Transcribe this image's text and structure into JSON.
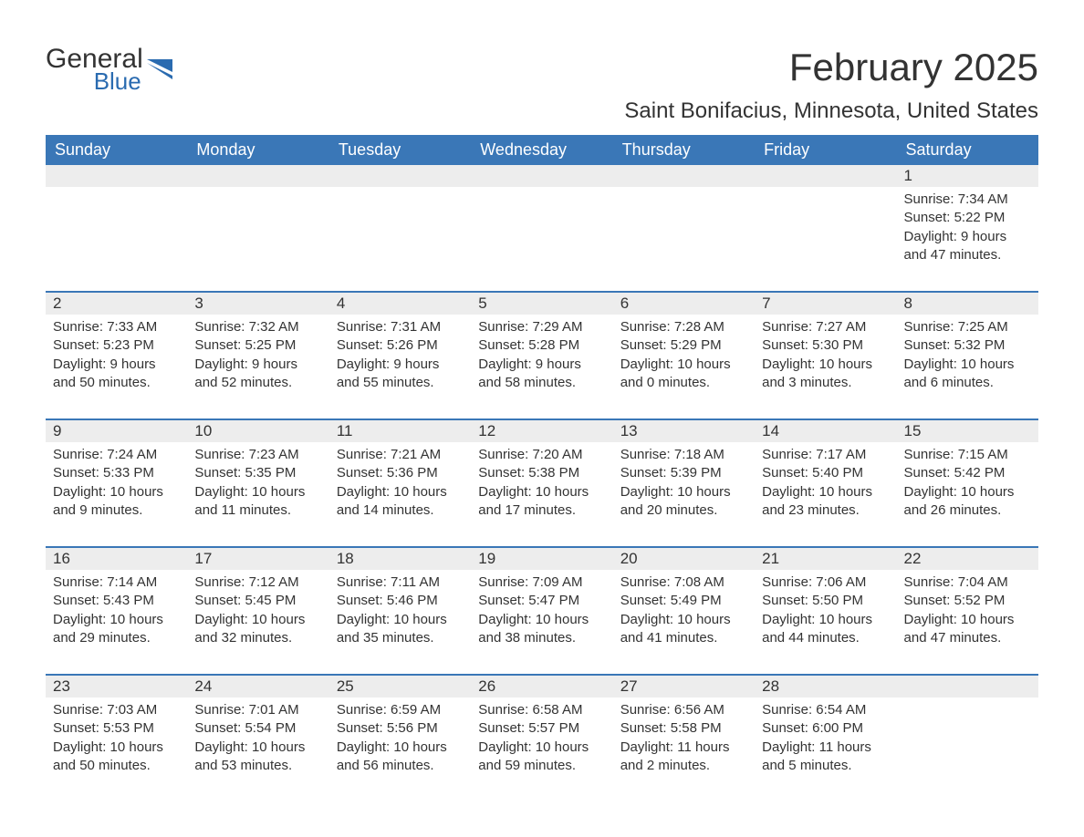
{
  "logo": {
    "general": "General",
    "blue": "Blue",
    "accent_color": "#2a6bb0"
  },
  "title": "February 2025",
  "subtitle": "Saint Bonifacius, Minnesota, United States",
  "colors": {
    "header_bg": "#3a77b7",
    "header_text": "#ffffff",
    "daynum_bg": "#ededed",
    "body_text": "#333333",
    "rule": "#3a77b7",
    "page_bg": "#ffffff"
  },
  "day_headers": [
    "Sunday",
    "Monday",
    "Tuesday",
    "Wednesday",
    "Thursday",
    "Friday",
    "Saturday"
  ],
  "weeks": [
    [
      {
        "empty": true
      },
      {
        "empty": true
      },
      {
        "empty": true
      },
      {
        "empty": true
      },
      {
        "empty": true
      },
      {
        "empty": true
      },
      {
        "num": "1",
        "sunrise": "Sunrise: 7:34 AM",
        "sunset": "Sunset: 5:22 PM",
        "day1": "Daylight: 9 hours",
        "day2": "and 47 minutes."
      }
    ],
    [
      {
        "num": "2",
        "sunrise": "Sunrise: 7:33 AM",
        "sunset": "Sunset: 5:23 PM",
        "day1": "Daylight: 9 hours",
        "day2": "and 50 minutes."
      },
      {
        "num": "3",
        "sunrise": "Sunrise: 7:32 AM",
        "sunset": "Sunset: 5:25 PM",
        "day1": "Daylight: 9 hours",
        "day2": "and 52 minutes."
      },
      {
        "num": "4",
        "sunrise": "Sunrise: 7:31 AM",
        "sunset": "Sunset: 5:26 PM",
        "day1": "Daylight: 9 hours",
        "day2": "and 55 minutes."
      },
      {
        "num": "5",
        "sunrise": "Sunrise: 7:29 AM",
        "sunset": "Sunset: 5:28 PM",
        "day1": "Daylight: 9 hours",
        "day2": "and 58 minutes."
      },
      {
        "num": "6",
        "sunrise": "Sunrise: 7:28 AM",
        "sunset": "Sunset: 5:29 PM",
        "day1": "Daylight: 10 hours",
        "day2": "and 0 minutes."
      },
      {
        "num": "7",
        "sunrise": "Sunrise: 7:27 AM",
        "sunset": "Sunset: 5:30 PM",
        "day1": "Daylight: 10 hours",
        "day2": "and 3 minutes."
      },
      {
        "num": "8",
        "sunrise": "Sunrise: 7:25 AM",
        "sunset": "Sunset: 5:32 PM",
        "day1": "Daylight: 10 hours",
        "day2": "and 6 minutes."
      }
    ],
    [
      {
        "num": "9",
        "sunrise": "Sunrise: 7:24 AM",
        "sunset": "Sunset: 5:33 PM",
        "day1": "Daylight: 10 hours",
        "day2": "and 9 minutes."
      },
      {
        "num": "10",
        "sunrise": "Sunrise: 7:23 AM",
        "sunset": "Sunset: 5:35 PM",
        "day1": "Daylight: 10 hours",
        "day2": "and 11 minutes."
      },
      {
        "num": "11",
        "sunrise": "Sunrise: 7:21 AM",
        "sunset": "Sunset: 5:36 PM",
        "day1": "Daylight: 10 hours",
        "day2": "and 14 minutes."
      },
      {
        "num": "12",
        "sunrise": "Sunrise: 7:20 AM",
        "sunset": "Sunset: 5:38 PM",
        "day1": "Daylight: 10 hours",
        "day2": "and 17 minutes."
      },
      {
        "num": "13",
        "sunrise": "Sunrise: 7:18 AM",
        "sunset": "Sunset: 5:39 PM",
        "day1": "Daylight: 10 hours",
        "day2": "and 20 minutes."
      },
      {
        "num": "14",
        "sunrise": "Sunrise: 7:17 AM",
        "sunset": "Sunset: 5:40 PM",
        "day1": "Daylight: 10 hours",
        "day2": "and 23 minutes."
      },
      {
        "num": "15",
        "sunrise": "Sunrise: 7:15 AM",
        "sunset": "Sunset: 5:42 PM",
        "day1": "Daylight: 10 hours",
        "day2": "and 26 minutes."
      }
    ],
    [
      {
        "num": "16",
        "sunrise": "Sunrise: 7:14 AM",
        "sunset": "Sunset: 5:43 PM",
        "day1": "Daylight: 10 hours",
        "day2": "and 29 minutes."
      },
      {
        "num": "17",
        "sunrise": "Sunrise: 7:12 AM",
        "sunset": "Sunset: 5:45 PM",
        "day1": "Daylight: 10 hours",
        "day2": "and 32 minutes."
      },
      {
        "num": "18",
        "sunrise": "Sunrise: 7:11 AM",
        "sunset": "Sunset: 5:46 PM",
        "day1": "Daylight: 10 hours",
        "day2": "and 35 minutes."
      },
      {
        "num": "19",
        "sunrise": "Sunrise: 7:09 AM",
        "sunset": "Sunset: 5:47 PM",
        "day1": "Daylight: 10 hours",
        "day2": "and 38 minutes."
      },
      {
        "num": "20",
        "sunrise": "Sunrise: 7:08 AM",
        "sunset": "Sunset: 5:49 PM",
        "day1": "Daylight: 10 hours",
        "day2": "and 41 minutes."
      },
      {
        "num": "21",
        "sunrise": "Sunrise: 7:06 AM",
        "sunset": "Sunset: 5:50 PM",
        "day1": "Daylight: 10 hours",
        "day2": "and 44 minutes."
      },
      {
        "num": "22",
        "sunrise": "Sunrise: 7:04 AM",
        "sunset": "Sunset: 5:52 PM",
        "day1": "Daylight: 10 hours",
        "day2": "and 47 minutes."
      }
    ],
    [
      {
        "num": "23",
        "sunrise": "Sunrise: 7:03 AM",
        "sunset": "Sunset: 5:53 PM",
        "day1": "Daylight: 10 hours",
        "day2": "and 50 minutes."
      },
      {
        "num": "24",
        "sunrise": "Sunrise: 7:01 AM",
        "sunset": "Sunset: 5:54 PM",
        "day1": "Daylight: 10 hours",
        "day2": "and 53 minutes."
      },
      {
        "num": "25",
        "sunrise": "Sunrise: 6:59 AM",
        "sunset": "Sunset: 5:56 PM",
        "day1": "Daylight: 10 hours",
        "day2": "and 56 minutes."
      },
      {
        "num": "26",
        "sunrise": "Sunrise: 6:58 AM",
        "sunset": "Sunset: 5:57 PM",
        "day1": "Daylight: 10 hours",
        "day2": "and 59 minutes."
      },
      {
        "num": "27",
        "sunrise": "Sunrise: 6:56 AM",
        "sunset": "Sunset: 5:58 PM",
        "day1": "Daylight: 11 hours",
        "day2": "and 2 minutes."
      },
      {
        "num": "28",
        "sunrise": "Sunrise: 6:54 AM",
        "sunset": "Sunset: 6:00 PM",
        "day1": "Daylight: 11 hours",
        "day2": "and 5 minutes."
      },
      {
        "empty": true
      }
    ]
  ]
}
